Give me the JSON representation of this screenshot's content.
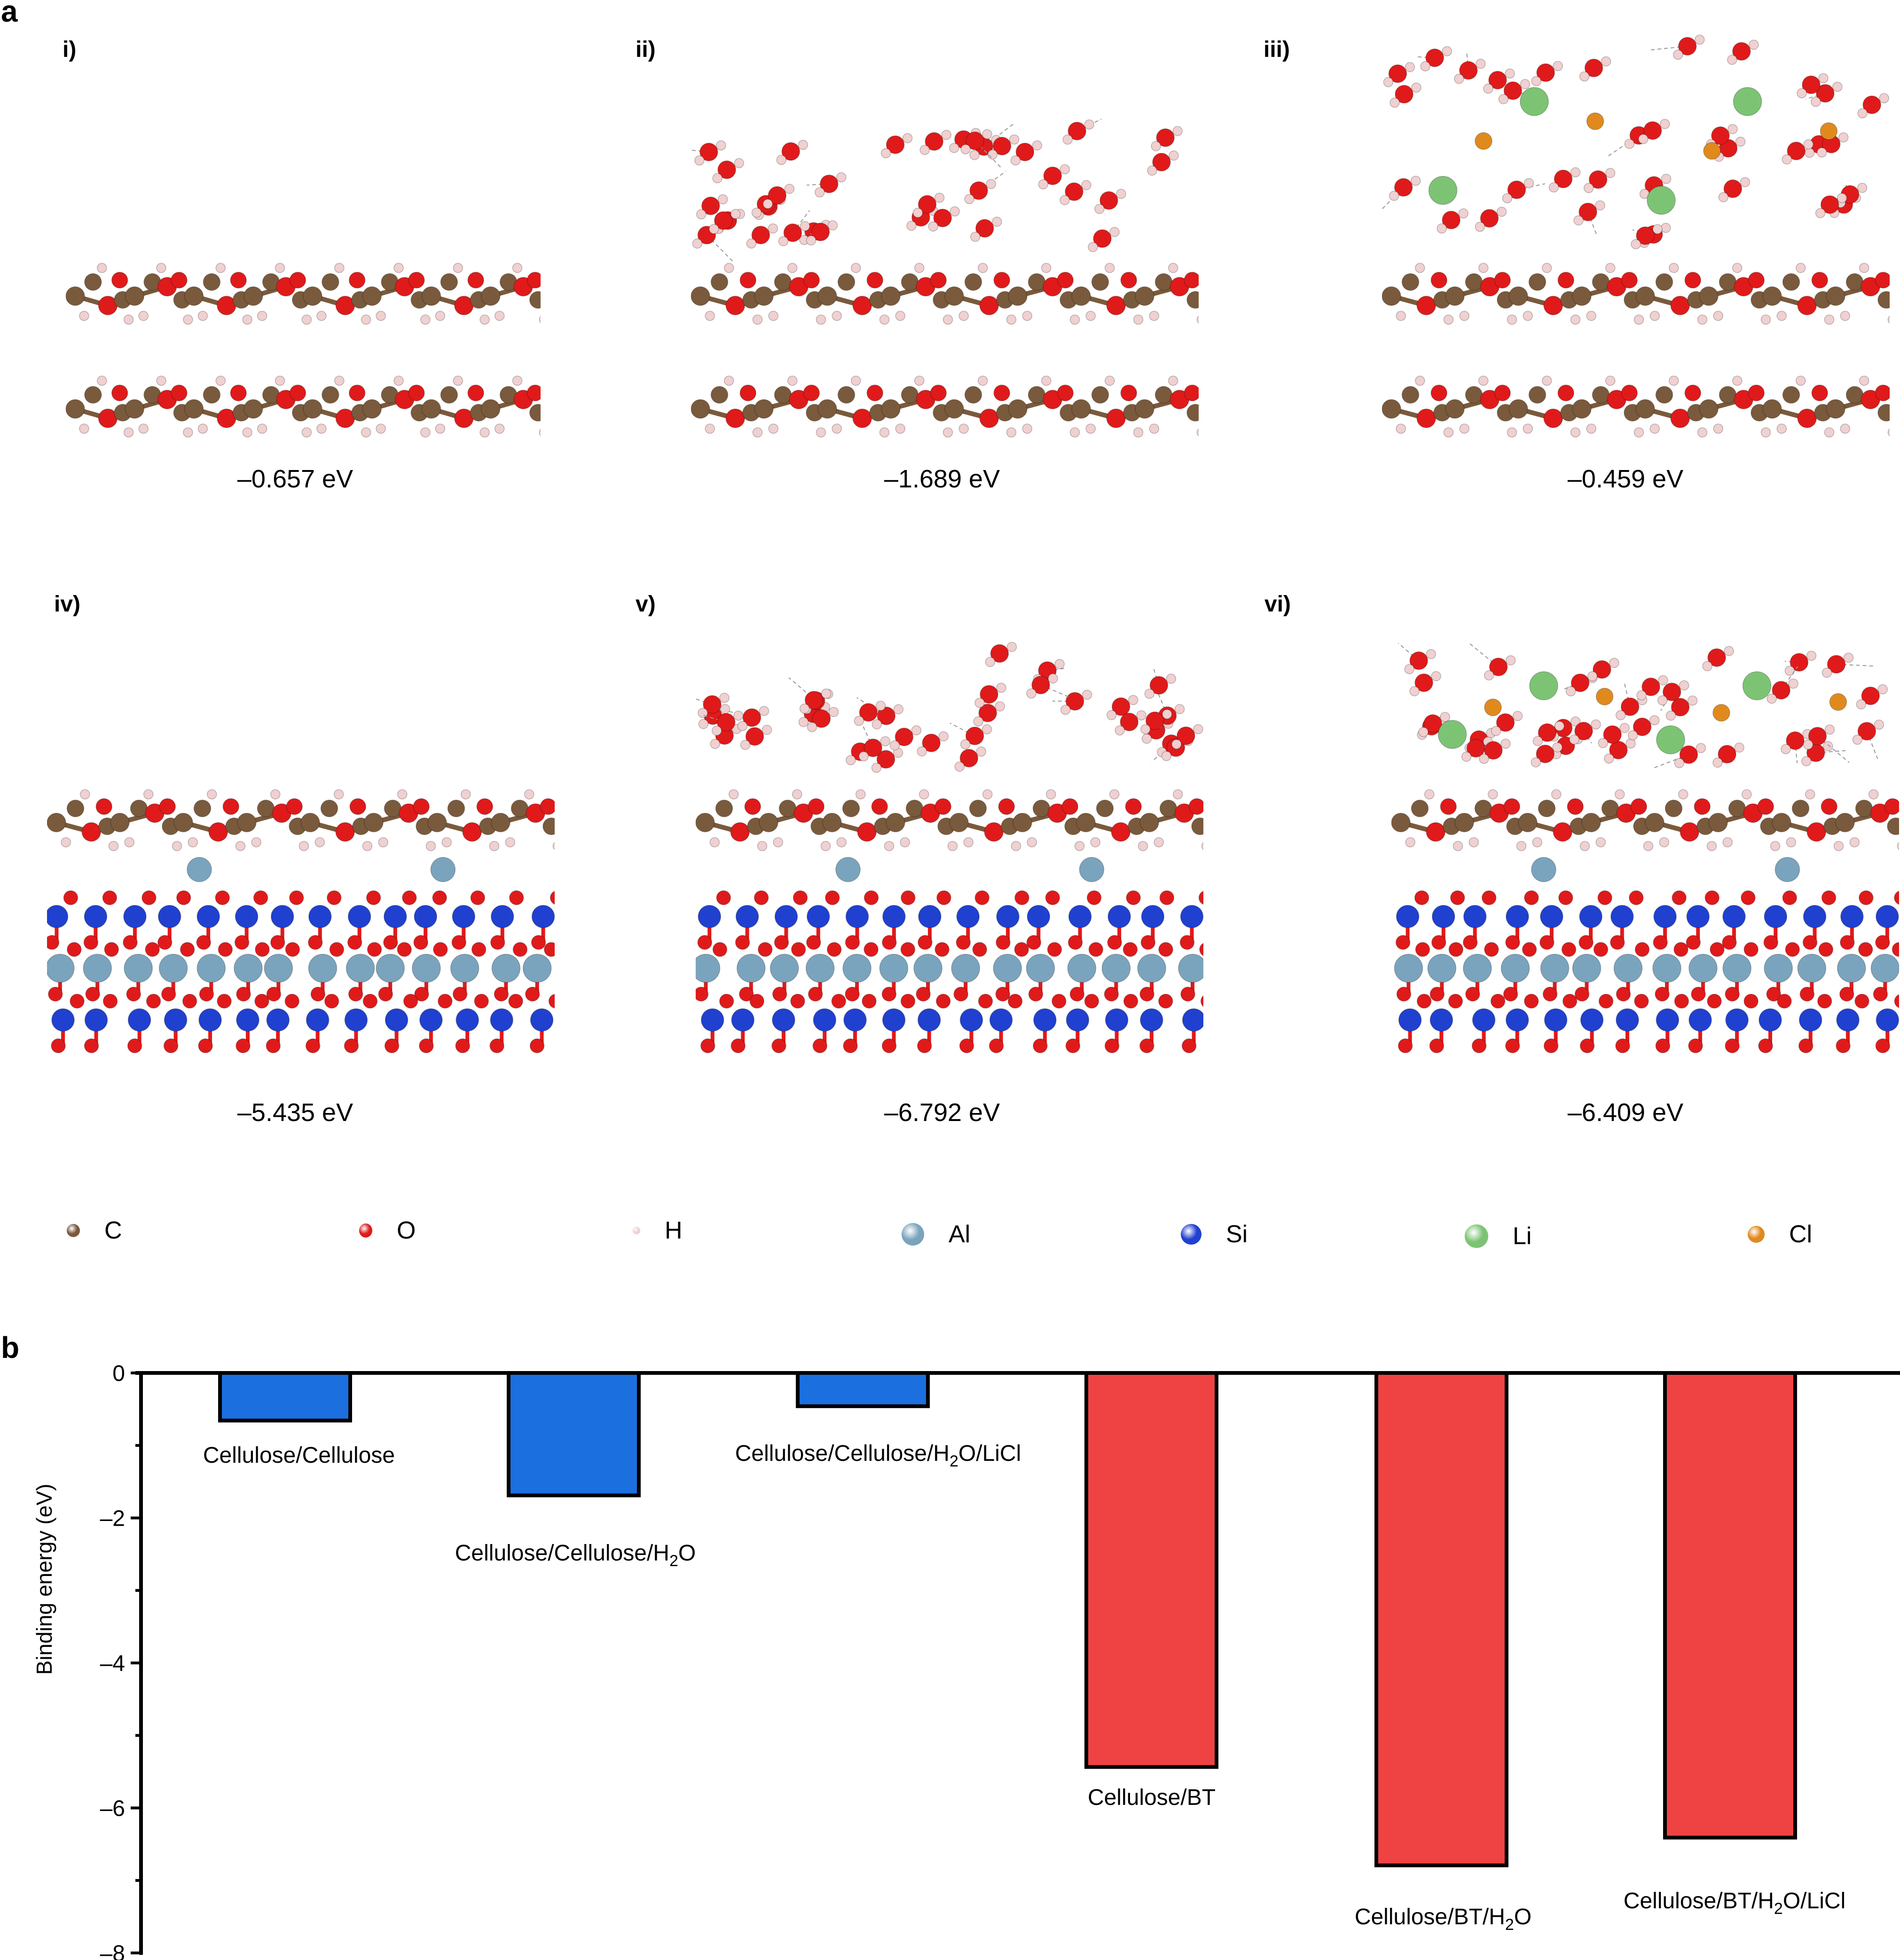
{
  "figure": {
    "panel_a_label": "a",
    "panel_b_label": "b"
  },
  "structures": [
    {
      "id": "i",
      "label": "i)",
      "energy": "–0.657 eV",
      "system": "Cellulose/Cellulose",
      "components": [
        "cellulose",
        "cellulose"
      ]
    },
    {
      "id": "ii",
      "label": "ii)",
      "energy": "–1.689 eV",
      "system": "Cellulose/Cellulose/H2O",
      "components": [
        "water",
        "cellulose",
        "cellulose"
      ]
    },
    {
      "id": "iii",
      "label": "iii)",
      "energy": "–0.459 eV",
      "system": "Cellulose/Cellulose/H2O/LiCl",
      "components": [
        "water-licl",
        "cellulose",
        "cellulose"
      ]
    },
    {
      "id": "iv",
      "label": "iv)",
      "energy": "–5.435 eV",
      "system": "Cellulose/BT",
      "components": [
        "cellulose",
        "bt"
      ]
    },
    {
      "id": "v",
      "label": "v)",
      "energy": "–6.792 eV",
      "system": "Cellulose/BT/H2O",
      "components": [
        "water",
        "cellulose",
        "bt"
      ]
    },
    {
      "id": "vi",
      "label": "vi)",
      "energy": "–6.409 eV",
      "system": "Cellulose/BT/H2O/LiCl",
      "components": [
        "water-licl",
        "cellulose",
        "bt"
      ]
    }
  ],
  "legend": [
    {
      "symbol": "C",
      "color": "#7a5a3c"
    },
    {
      "symbol": "O",
      "color": "#e01a1a"
    },
    {
      "symbol": "H",
      "color": "#f0d0d0"
    },
    {
      "symbol": "Al",
      "color": "#7aa4bd"
    },
    {
      "symbol": "Si",
      "color": "#2040d0"
    },
    {
      "symbol": "Li",
      "color": "#7cc474"
    },
    {
      "symbol": "Cl",
      "color": "#e08a1e"
    }
  ],
  "chart_data": {
    "type": "bar",
    "title": "",
    "xlabel": "",
    "ylabel": "Binding energy (eV)",
    "ylim": [
      -8,
      0
    ],
    "yticks": [
      0,
      -2,
      -4,
      -6,
      -8
    ],
    "ytick_labels": [
      "0",
      "–2",
      "–4",
      "–6",
      "–8"
    ],
    "minor_yticks": [
      -1,
      -3,
      -5,
      -7
    ],
    "grid": false,
    "legend": "none",
    "categories": [
      {
        "pre": "Cellulose/Cellulose",
        "sub": "",
        "post": ""
      },
      {
        "pre": "Cellulose/Cellulose/H",
        "sub": "2",
        "post": "O"
      },
      {
        "pre": "Cellulose/Cellulose/H",
        "sub": "2",
        "post": "O/LiCl"
      },
      {
        "pre": "Cellulose/BT",
        "sub": "",
        "post": ""
      },
      {
        "pre": "Cellulose/BT/H",
        "sub": "2",
        "post": "O"
      },
      {
        "pre": "Cellulose/BT/H",
        "sub": "2",
        "post": "O/LiCl"
      }
    ],
    "values": [
      -0.657,
      -1.689,
      -0.459,
      -5.435,
      -6.792,
      -6.409
    ],
    "colors": [
      "#1b6fde",
      "#1b6fde",
      "#1b6fde",
      "#ef4343",
      "#ef4343",
      "#ef4343"
    ],
    "group_colors": {
      "cellulose-cellulose": "#1b6fde",
      "cellulose-bt": "#ef4343"
    }
  }
}
